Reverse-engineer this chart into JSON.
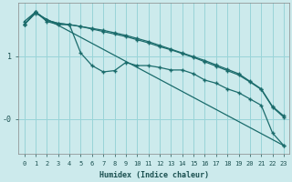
{
  "xlabel": "Humidex (Indice chaleur)",
  "background_color": "#cceaec",
  "grid_color": "#99d4d8",
  "line_color": "#1a6b6b",
  "xlim": [
    -0.5,
    23.5
  ],
  "ylim": [
    -0.55,
    1.85
  ],
  "ytick_positions": [
    1.0,
    0.0
  ],
  "ytick_labels": [
    "1",
    "-0"
  ],
  "xticks": [
    0,
    1,
    2,
    3,
    4,
    5,
    6,
    7,
    8,
    9,
    10,
    11,
    12,
    13,
    14,
    15,
    16,
    17,
    18,
    19,
    20,
    21,
    22,
    23
  ],
  "series": [
    {
      "x": [
        0,
        1,
        2,
        3,
        4,
        5,
        6,
        7,
        8,
        9,
        10,
        11,
        12,
        13,
        14,
        15,
        16,
        17,
        18,
        19,
        20,
        21,
        22,
        23
      ],
      "y": [
        1.5,
        1.7,
        1.55,
        1.5,
        1.5,
        1.05,
        0.85,
        0.75,
        0.77,
        0.9,
        0.85,
        0.85,
        0.82,
        0.78,
        0.78,
        0.72,
        0.62,
        0.57,
        0.48,
        0.42,
        0.32,
        0.22,
        -0.22,
        -0.42
      ]
    },
    {
      "x": [
        0,
        1,
        2,
        3,
        4,
        5,
        6,
        7,
        8,
        9,
        10,
        11,
        12,
        13,
        14,
        15,
        16,
        17,
        18,
        19,
        20,
        21,
        22,
        23
      ],
      "y": [
        1.55,
        1.7,
        1.57,
        1.52,
        1.5,
        1.47,
        1.44,
        1.41,
        1.37,
        1.33,
        1.28,
        1.23,
        1.17,
        1.11,
        1.05,
        0.99,
        0.93,
        0.86,
        0.79,
        0.72,
        0.6,
        0.48,
        0.2,
        0.05
      ]
    },
    {
      "x": [
        0,
        1,
        2,
        3,
        4,
        5,
        6,
        7,
        8,
        9,
        10,
        11,
        12,
        13,
        14,
        15,
        16,
        17,
        18,
        19,
        20,
        21,
        22,
        23
      ],
      "y": [
        1.5,
        1.7,
        1.57,
        1.52,
        1.5,
        1.47,
        1.43,
        1.39,
        1.35,
        1.31,
        1.26,
        1.21,
        1.15,
        1.1,
        1.04,
        0.98,
        0.91,
        0.84,
        0.77,
        0.7,
        0.59,
        0.47,
        0.19,
        0.03
      ]
    },
    {
      "x": [
        0,
        1,
        23
      ],
      "y": [
        1.5,
        1.68,
        -0.42
      ]
    }
  ]
}
